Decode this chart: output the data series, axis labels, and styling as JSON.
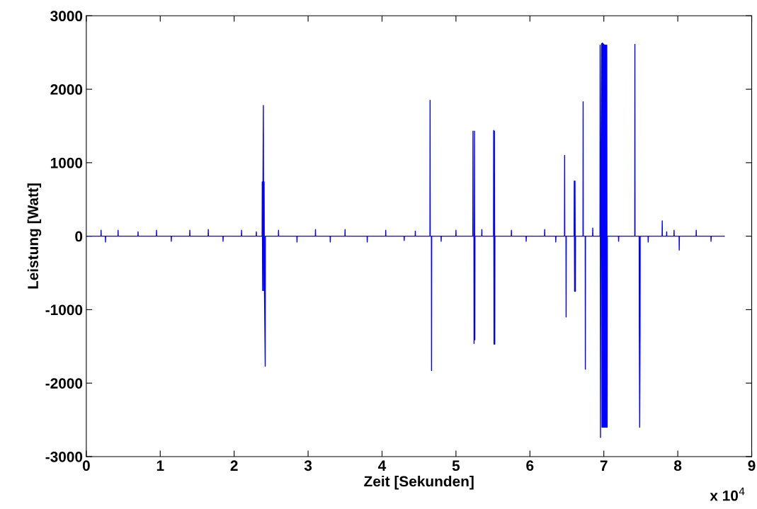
{
  "chart_data": {
    "type": "line",
    "xlabel": "Zeit [Sekunden]",
    "ylabel": "Leistung [Watt]",
    "annotations": [
      "x 10$^{4}$"
    ],
    "xlim": [
      0,
      9
    ],
    "xticks": [
      0,
      1,
      2,
      3,
      4,
      5,
      6,
      7,
      8,
      9
    ],
    "ylim": [
      -3000,
      3000
    ],
    "yticks": [
      -3000,
      -2000,
      -1000,
      0,
      1000,
      2000,
      3000
    ],
    "grid": false,
    "legend": false,
    "marker": "none",
    "line_style": "solid",
    "series": [
      {
        "color": "#0000ff",
        "x": [
          0,
          0.198,
          0.2,
          0.202,
          0.258,
          0.26,
          0.262,
          0.428,
          0.43,
          0.432,
          0.698,
          0.7,
          0.702,
          0.948,
          0.95,
          0.952,
          1.148,
          1.15,
          1.152,
          1.398,
          1.4,
          1.402,
          1.648,
          1.65,
          1.652,
          1.848,
          1.85,
          1.852,
          2.098,
          2.1,
          2.102,
          2.298,
          2.3,
          2.302,
          2.378,
          2.38,
          2.385,
          2.39,
          2.395,
          2.4,
          2.405,
          2.41,
          2.42,
          2.422,
          2.598,
          2.6,
          2.602,
          2.848,
          2.85,
          2.852,
          3.098,
          3.1,
          3.102,
          3.298,
          3.3,
          3.302,
          3.498,
          3.5,
          3.502,
          3.798,
          3.8,
          3.802,
          4.048,
          4.05,
          4.052,
          4.298,
          4.3,
          4.302,
          4.448,
          4.45,
          4.452,
          4.648,
          4.65,
          4.652,
          4.668,
          4.67,
          4.672,
          4.798,
          4.8,
          4.802,
          4.998,
          5.0,
          5.002,
          5.228,
          5.23,
          5.232,
          5.243,
          5.245,
          5.25,
          5.255,
          5.257,
          5.348,
          5.35,
          5.352,
          5.508,
          5.51,
          5.515,
          5.52,
          5.525,
          5.527,
          5.748,
          5.75,
          5.752,
          5.948,
          5.95,
          5.952,
          6.198,
          6.2,
          6.202,
          6.348,
          6.35,
          6.352,
          6.468,
          6.47,
          6.472,
          6.488,
          6.49,
          6.492,
          6.598,
          6.6,
          6.605,
          6.61,
          6.615,
          6.617,
          6.718,
          6.72,
          6.722,
          6.748,
          6.75,
          6.752,
          6.848,
          6.85,
          6.852,
          6.948,
          6.95,
          6.955,
          6.96,
          6.97,
          6.975,
          6.98,
          6.985,
          6.99,
          6.995,
          7.0,
          7.005,
          7.01,
          7.015,
          7.02,
          7.025,
          7.03,
          7.035,
          7.04,
          7.045,
          7.047,
          7.198,
          7.2,
          7.202,
          7.418,
          7.42,
          7.422,
          7.478,
          7.48,
          7.485,
          7.49,
          7.492,
          7.598,
          7.6,
          7.602,
          7.788,
          7.79,
          7.792,
          7.848,
          7.85,
          7.852,
          7.948,
          7.95,
          7.952,
          8.018,
          8.02,
          8.022,
          8.248,
          8.25,
          8.252,
          8.448,
          8.45,
          8.452,
          8.63
        ],
        "values": [
          0,
          0,
          80,
          0,
          0,
          -80,
          0,
          0,
          80,
          0,
          0,
          60,
          0,
          0,
          80,
          0,
          0,
          -70,
          0,
          0,
          80,
          0,
          0,
          90,
          0,
          0,
          -70,
          0,
          0,
          80,
          0,
          0,
          60,
          0,
          0,
          740,
          -740,
          740,
          1780,
          -740,
          740,
          -740,
          -1770,
          0,
          0,
          80,
          0,
          0,
          -80,
          0,
          0,
          90,
          0,
          0,
          -80,
          0,
          0,
          90,
          0,
          0,
          -80,
          0,
          0,
          80,
          0,
          0,
          -60,
          0,
          0,
          70,
          0,
          0,
          1850,
          0,
          0,
          -1830,
          0,
          0,
          -70,
          0,
          0,
          80,
          0,
          0,
          1430,
          0,
          0,
          -1460,
          1430,
          -1410,
          0,
          0,
          90,
          0,
          0,
          1440,
          -1470,
          1430,
          -1470,
          0,
          0,
          80,
          0,
          0,
          -70,
          0,
          0,
          90,
          0,
          0,
          -80,
          0,
          0,
          1100,
          0,
          0,
          -1100,
          0,
          0,
          750,
          -750,
          750,
          -750,
          0,
          0,
          1830,
          0,
          0,
          -1810,
          0,
          0,
          110,
          0,
          0,
          2600,
          -2740,
          100,
          2620,
          -2600,
          2630,
          -2600,
          2620,
          -2600,
          2610,
          -2600,
          2600,
          -2600,
          2600,
          -2600,
          2600,
          -2600,
          2600,
          -2600,
          0,
          0,
          -70,
          0,
          0,
          2610,
          0,
          0,
          -1300,
          -2600,
          -1300,
          0,
          0,
          -80,
          0,
          0,
          210,
          0,
          0,
          60,
          0,
          0,
          80,
          0,
          0,
          -190,
          0,
          0,
          80,
          0,
          0,
          -70,
          0,
          0
        ]
      }
    ]
  }
}
